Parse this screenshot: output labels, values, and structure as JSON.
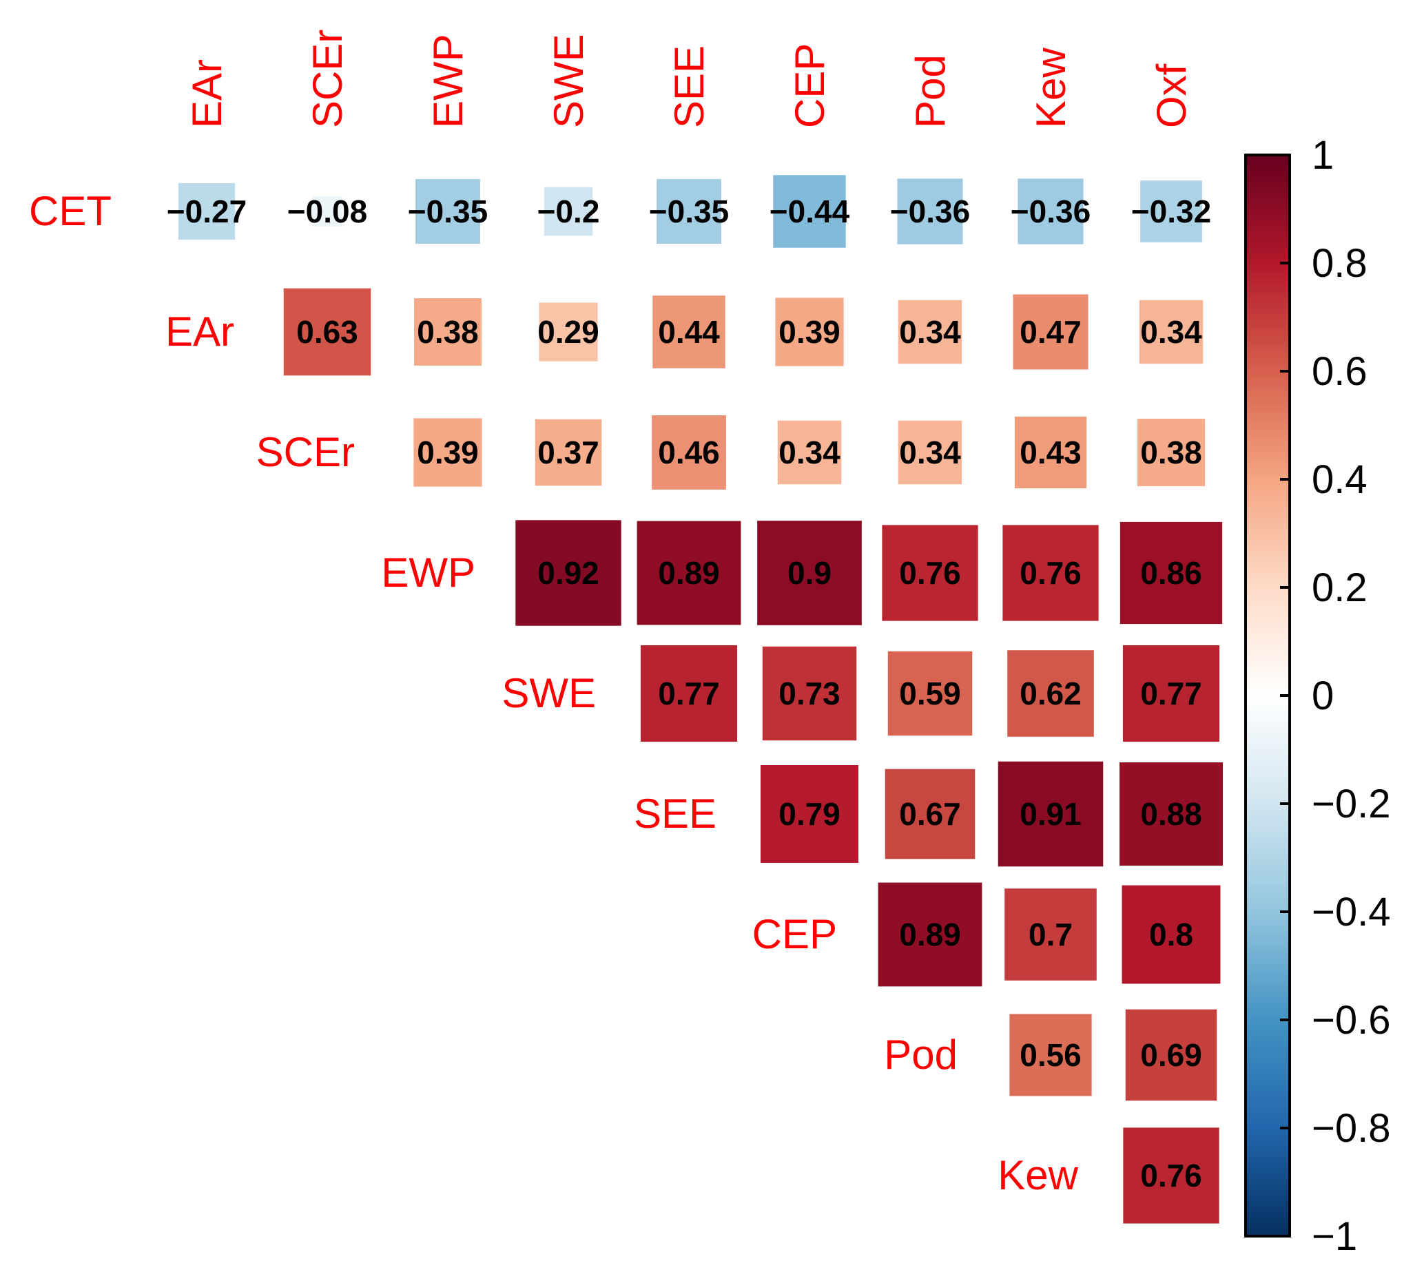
{
  "chart_data": {
    "type": "heatmap",
    "title": "",
    "colorbar": {
      "min": -1,
      "max": 1,
      "ticks": [
        "1",
        "0.8",
        "0.6",
        "0.4",
        "0.2",
        "0",
        "−0.2",
        "−0.4",
        "−0.6",
        "−0.8",
        "−1"
      ],
      "tick_values": [
        1,
        0.8,
        0.6,
        0.4,
        0.2,
        0,
        -0.2,
        -0.4,
        -0.6,
        -0.8,
        -1
      ],
      "colors": [
        "#053061",
        "#2166ac",
        "#4393c3",
        "#92c5de",
        "#d1e5f0",
        "#ffffff",
        "#fddbc7",
        "#f4a582",
        "#d6604d",
        "#b2182b",
        "#67001f"
      ]
    },
    "column_labels": [
      "EAr",
      "SCEr",
      "EWP",
      "SWE",
      "SEE",
      "CEP",
      "Pod",
      "Kew",
      "Oxf"
    ],
    "row_labels": [
      "CET",
      "EAr",
      "SCEr",
      "EWP",
      "SWE",
      "SEE",
      "CEP",
      "Pod",
      "Kew"
    ],
    "rows": [
      {
        "row": "CET",
        "values": [
          -0.27,
          -0.08,
          -0.35,
          -0.2,
          -0.35,
          -0.44,
          -0.36,
          -0.36,
          -0.32
        ],
        "labels": [
          "−0.27",
          "−0.08",
          "−0.35",
          "−0.2",
          "−0.35",
          "−0.44",
          "−0.36",
          "−0.36",
          "−0.32"
        ]
      },
      {
        "row": "EAr",
        "values": [
          null,
          0.63,
          0.38,
          0.29,
          0.44,
          0.39,
          0.34,
          0.47,
          0.34
        ],
        "labels": [
          null,
          "0.63",
          "0.38",
          "0.29",
          "0.44",
          "0.39",
          "0.34",
          "0.47",
          "0.34"
        ]
      },
      {
        "row": "SCEr",
        "values": [
          null,
          null,
          0.39,
          0.37,
          0.46,
          0.34,
          0.34,
          0.43,
          0.38
        ],
        "labels": [
          null,
          null,
          "0.39",
          "0.37",
          "0.46",
          "0.34",
          "0.34",
          "0.43",
          "0.38"
        ]
      },
      {
        "row": "EWP",
        "values": [
          null,
          null,
          null,
          0.92,
          0.89,
          0.9,
          0.76,
          0.76,
          0.86
        ],
        "labels": [
          null,
          null,
          null,
          "0.92",
          "0.89",
          "0.9",
          "0.76",
          "0.76",
          "0.86"
        ]
      },
      {
        "row": "SWE",
        "values": [
          null,
          null,
          null,
          null,
          0.77,
          0.73,
          0.59,
          0.62,
          0.77
        ],
        "labels": [
          null,
          null,
          null,
          null,
          "0.77",
          "0.73",
          "0.59",
          "0.62",
          "0.77"
        ]
      },
      {
        "row": "SEE",
        "values": [
          null,
          null,
          null,
          null,
          null,
          0.79,
          0.67,
          0.91,
          0.88
        ],
        "labels": [
          null,
          null,
          null,
          null,
          null,
          "0.79",
          "0.67",
          "0.91",
          "0.88"
        ]
      },
      {
        "row": "CEP",
        "values": [
          null,
          null,
          null,
          null,
          null,
          null,
          0.89,
          0.7,
          0.8
        ],
        "labels": [
          null,
          null,
          null,
          null,
          null,
          null,
          "0.89",
          "0.7",
          "0.8"
        ]
      },
      {
        "row": "Pod",
        "values": [
          null,
          null,
          null,
          null,
          null,
          null,
          null,
          0.56,
          0.69
        ],
        "labels": [
          null,
          null,
          null,
          null,
          null,
          null,
          null,
          "0.56",
          "0.69"
        ]
      },
      {
        "row": "Kew",
        "values": [
          null,
          null,
          null,
          null,
          null,
          null,
          null,
          null,
          0.76
        ],
        "labels": [
          null,
          null,
          null,
          null,
          null,
          null,
          null,
          null,
          "0.76"
        ]
      }
    ]
  }
}
